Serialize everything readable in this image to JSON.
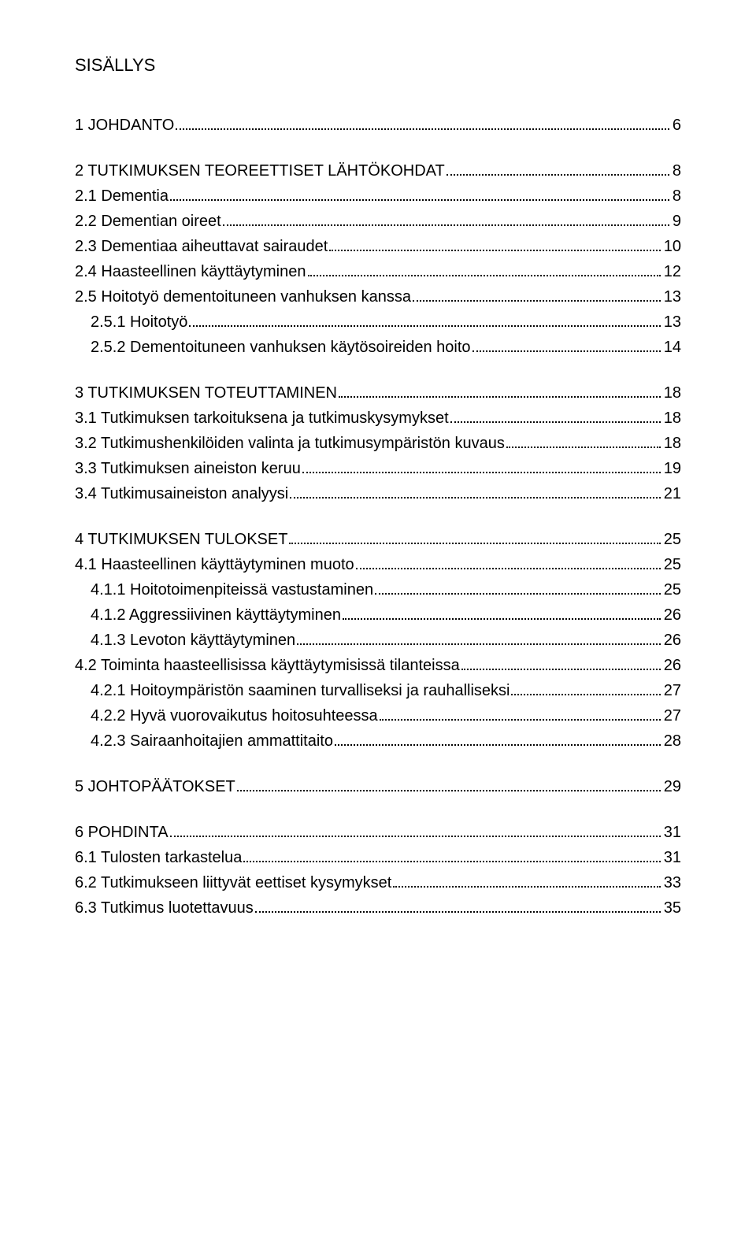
{
  "title": "SISÄLLYS",
  "entries": [
    {
      "level": 0,
      "group_gap": false,
      "text": "1 JOHDANTO",
      "page": "6"
    },
    {
      "level": 0,
      "group_gap": true,
      "text": "2 TUTKIMUKSEN TEOREETTISET LÄHTÖKOHDAT",
      "page": "8"
    },
    {
      "level": 1,
      "group_gap": false,
      "text": "2.1 Dementia",
      "page": "8"
    },
    {
      "level": 1,
      "group_gap": false,
      "text": "2.2 Dementian oireet",
      "page": "9"
    },
    {
      "level": 1,
      "group_gap": false,
      "text": "2.3 Dementiaa aiheuttavat sairaudet",
      "page": "10"
    },
    {
      "level": 1,
      "group_gap": false,
      "text": "2.4 Haasteellinen käyttäytyminen",
      "page": "12"
    },
    {
      "level": 1,
      "group_gap": false,
      "text": "2.5 Hoitotyö dementoituneen vanhuksen kanssa",
      "page": "13"
    },
    {
      "level": 2,
      "group_gap": false,
      "text": "2.5.1 Hoitotyö",
      "page": "13"
    },
    {
      "level": 2,
      "group_gap": false,
      "text": "2.5.2 Dementoituneen vanhuksen käytösoireiden hoito",
      "page": "14"
    },
    {
      "level": 0,
      "group_gap": true,
      "text": "3 TUTKIMUKSEN TOTEUTTAMINEN",
      "page": "18"
    },
    {
      "level": 1,
      "group_gap": false,
      "text": "3.1 Tutkimuksen tarkoituksena ja tutkimuskysymykset",
      "page": "18"
    },
    {
      "level": 1,
      "group_gap": false,
      "text": "3.2 Tutkimushenkilöiden valinta ja tutkimusympäristön kuvaus",
      "page": "18"
    },
    {
      "level": 1,
      "group_gap": false,
      "text": "3.3 Tutkimuksen aineiston keruu",
      "page": "19"
    },
    {
      "level": 1,
      "group_gap": false,
      "text": "3.4 Tutkimusaineiston analyysi",
      "page": "21"
    },
    {
      "level": 0,
      "group_gap": true,
      "text": "4 TUTKIMUKSEN TULOKSET",
      "page": "25"
    },
    {
      "level": 1,
      "group_gap": false,
      "text": "4.1 Haasteellinen käyttäytyminen muoto",
      "page": "25"
    },
    {
      "level": 2,
      "group_gap": false,
      "text": "4.1.1 Hoitotoimenpiteissä vastustaminen",
      "page": "25"
    },
    {
      "level": 2,
      "group_gap": false,
      "text": "4.1.2 Aggressiivinen käyttäytyminen",
      "page": "26"
    },
    {
      "level": 2,
      "group_gap": false,
      "text": "4.1.3 Levoton käyttäytyminen",
      "page": "26"
    },
    {
      "level": 1,
      "group_gap": false,
      "text": "4.2 Toiminta haasteellisissa käyttäytymisissä tilanteissa",
      "page": "26"
    },
    {
      "level": 2,
      "group_gap": false,
      "text": "4.2.1 Hoitoympäristön saaminen turvalliseksi ja rauhalliseksi",
      "page": "27"
    },
    {
      "level": 2,
      "group_gap": false,
      "text": "4.2.2 Hyvä vuorovaikutus hoitosuhteessa",
      "page": "27"
    },
    {
      "level": 2,
      "group_gap": false,
      "text": "4.2.3 Sairaanhoitajien ammattitaito",
      "page": "28"
    },
    {
      "level": 0,
      "group_gap": true,
      "text": "5 JOHTOPÄÄTOKSET",
      "page": "29"
    },
    {
      "level": 0,
      "group_gap": true,
      "text": "6 POHDINTA",
      "page": "31"
    },
    {
      "level": 1,
      "group_gap": false,
      "text": "6.1 Tulosten tarkastelua",
      "page": "31"
    },
    {
      "level": 1,
      "group_gap": false,
      "text": "6.2 Tutkimukseen liittyvät eettiset kysymykset",
      "page": "33"
    },
    {
      "level": 1,
      "group_gap": false,
      "text": "6.3 Tutkimus luotettavuus",
      "page": "35"
    }
  ]
}
